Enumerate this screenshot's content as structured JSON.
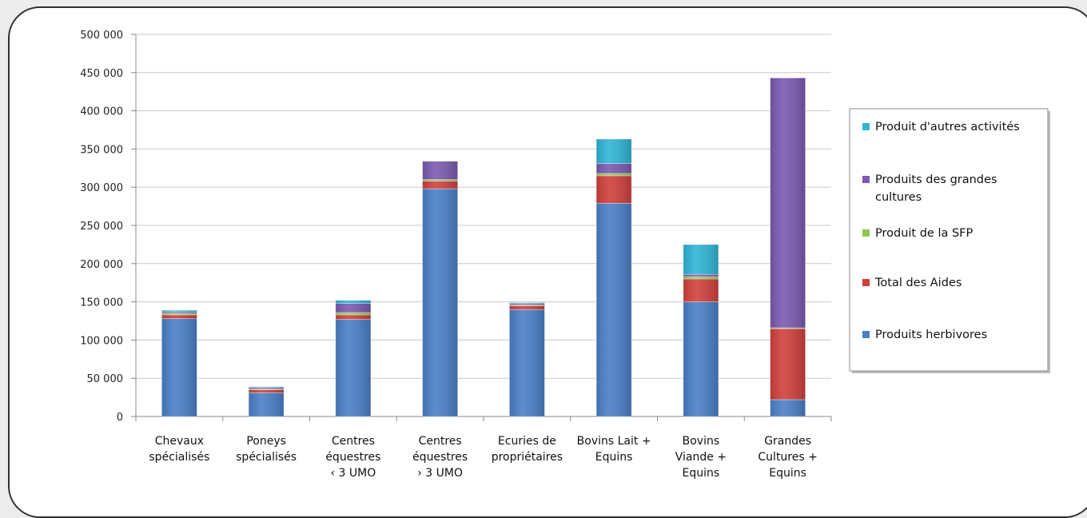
{
  "chart_data": {
    "type": "bar",
    "stacked": true,
    "categories": [
      [
        "Chevaux",
        "spécialisés"
      ],
      [
        "Poneys",
        "spécialisés"
      ],
      [
        "Centres",
        "équestres",
        "‹ 3 UMO"
      ],
      [
        "Centres",
        "équestres",
        "› 3 UMO"
      ],
      [
        "Ecuries de",
        "propriétaires"
      ],
      [
        "Bovins Lait +",
        "Equins"
      ],
      [
        "Bovins",
        "Viande +",
        "Equins"
      ],
      [
        "Grandes",
        "Cultures +",
        "Equins"
      ]
    ],
    "ylim": [
      0,
      500000
    ],
    "yticks": [
      0,
      50000,
      100000,
      150000,
      200000,
      250000,
      300000,
      350000,
      400000,
      450000,
      500000
    ],
    "ytick_labels": [
      "0",
      "50 000",
      "100 000",
      "150 000",
      "200 000",
      "250 000",
      "300 000",
      "350 000",
      "400 000",
      "450 000",
      "500 000"
    ],
    "grid": true,
    "legend_position": "right",
    "series": [
      {
        "name": "Produits herbivores",
        "color": "#4a7fc8",
        "values": [
          128000,
          31000,
          127000,
          298000,
          140000,
          279000,
          150000,
          22000
        ]
      },
      {
        "name": "Total des Aides",
        "color": "#d0403c",
        "values": [
          5000,
          4000,
          6000,
          10000,
          5000,
          36000,
          30000,
          93000
        ]
      },
      {
        "name": "Produit de la SFP",
        "color": "#8fc74f",
        "values": [
          2000,
          1000,
          3000,
          2000,
          1000,
          3000,
          3000,
          1000
        ]
      },
      {
        "name": "Produits des grandes cultures",
        "color": "#7b5ab0",
        "values": [
          2000,
          2000,
          12000,
          24000,
          2000,
          13000,
          3000,
          327000
        ]
      },
      {
        "name": "Produit d'autres activités",
        "color": "#2fb5d6",
        "values": [
          2000,
          1000,
          4000,
          0,
          1000,
          32000,
          39000,
          0
        ]
      }
    ],
    "legend_order": [
      4,
      3,
      2,
      1,
      0
    ],
    "legend_lines": [
      [
        "Produit d'autres activités"
      ],
      [
        "Produits des grandes",
        "cultures"
      ],
      [
        "Produit de la SFP"
      ],
      [
        "Total des Aides"
      ],
      [
        "Produits herbivores"
      ]
    ]
  }
}
